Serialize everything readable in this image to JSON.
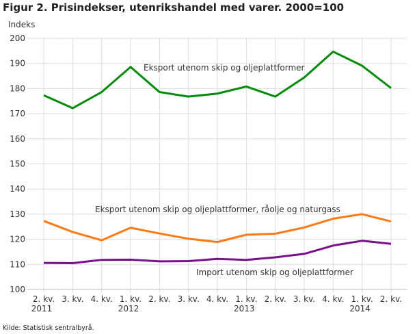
{
  "chart_data": {
    "type": "line",
    "title": "Figur 2. Prisindekser, utenrikshandel med varer. 2000=100",
    "ylabel": "Indeks",
    "xlabel": "",
    "ylim": [
      100,
      200
    ],
    "yticks": [
      100,
      110,
      120,
      130,
      140,
      150,
      160,
      170,
      180,
      190,
      200
    ],
    "grid": true,
    "legend": "inline labels",
    "categories": [
      [
        "2. kv.",
        "2011"
      ],
      [
        "3. kv.",
        ""
      ],
      [
        "4. kv.",
        ""
      ],
      [
        "1. kv.",
        "2012"
      ],
      [
        "2. kv.",
        ""
      ],
      [
        "3. kv.",
        ""
      ],
      [
        "4. kv.",
        ""
      ],
      [
        "1. kv.",
        "2013"
      ],
      [
        "2. kv.",
        ""
      ],
      [
        "3. kv.",
        ""
      ],
      [
        "4. kv.",
        ""
      ],
      [
        "1. kv.",
        "2014"
      ],
      [
        "2. kv.",
        ""
      ]
    ],
    "series": [
      {
        "name": "Eksport utenom skip og oljeplattformer",
        "color": "#008c0a",
        "values": [
          177.3,
          172.2,
          178.6,
          188.6,
          178.6,
          176.8,
          178.0,
          180.8,
          176.8,
          184.4,
          194.7,
          189.1,
          180.2
        ]
      },
      {
        "name": "Eksport utenom skip og oljeplattformer, råolje og naturgass",
        "color": "#ff7a14",
        "values": [
          127.3,
          122.9,
          119.6,
          124.6,
          122.3,
          120.2,
          118.9,
          121.8,
          122.2,
          124.7,
          128.2,
          130.0,
          127.1
        ]
      },
      {
        "name": "Import utenom skip og oljeplattformer",
        "color": "#7a0f8c",
        "values": [
          110.6,
          110.5,
          111.8,
          111.9,
          111.2,
          111.3,
          112.2,
          111.8,
          112.8,
          114.2,
          117.5,
          119.4,
          118.2
        ]
      }
    ]
  },
  "source": "Kilde: Statistisk sentralbyrå."
}
